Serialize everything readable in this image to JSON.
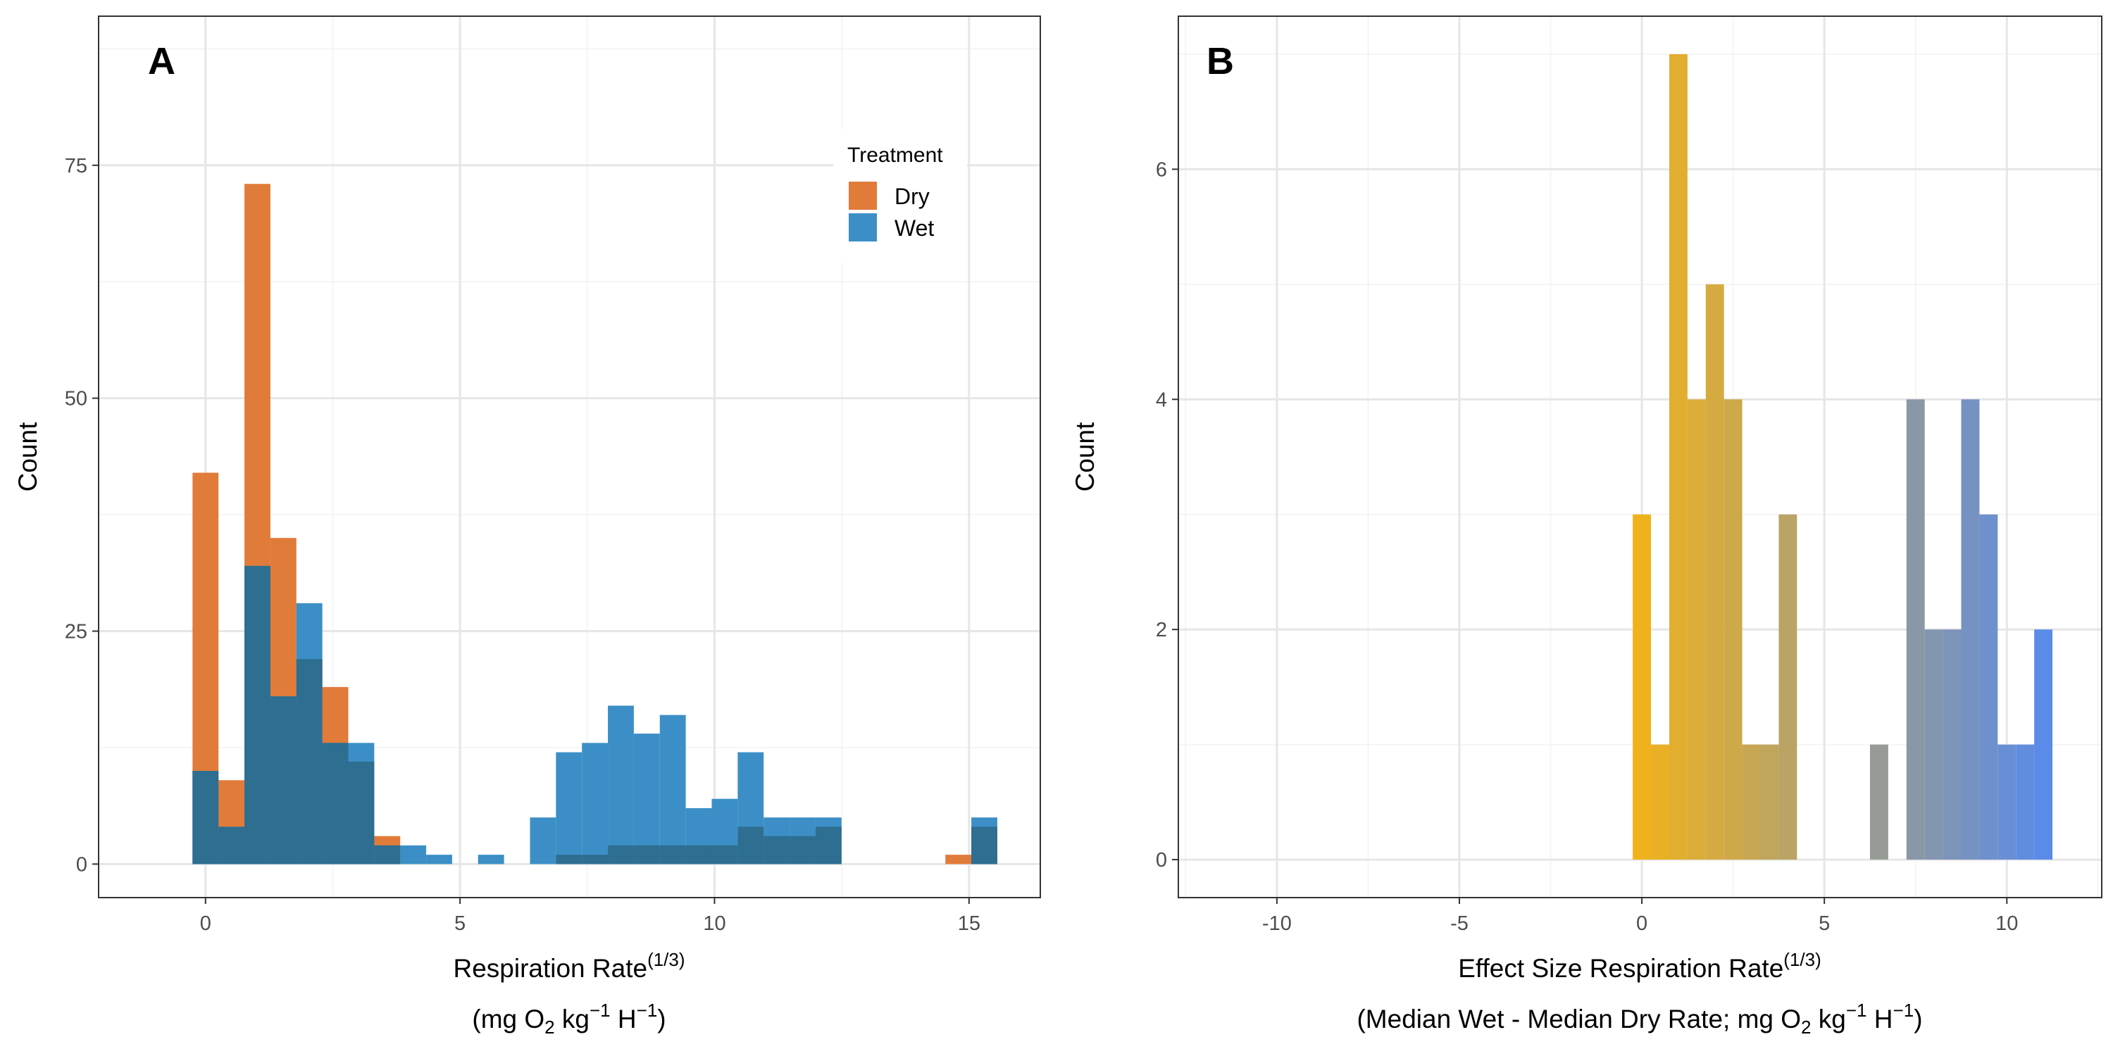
{
  "chart_data": [
    {
      "panel": "A",
      "type": "bar",
      "xlabel": "Respiration Rate",
      "xlabel_power": "(1/3)",
      "xlabel_units": "(mg O2 kg-1 H-1)",
      "ylabel": "Count",
      "xlim": [
        -2.1,
        16.4
      ],
      "ylim": [
        -3.6,
        91
      ],
      "x_ticks": [
        0,
        5,
        10,
        15
      ],
      "y_ticks": [
        0,
        25,
        50,
        75
      ],
      "grid": true,
      "bin_width": 0.51,
      "legend": {
        "title": "Treatment",
        "placement": "top-right",
        "items": [
          "Dry",
          "Wet"
        ]
      },
      "series": [
        {
          "name": "Dry",
          "color": "#e07b39",
          "x": [
            0.0,
            0.51,
            1.02,
            1.53,
            2.04,
            2.55,
            3.06,
            3.57,
            14.79,
            15.3
          ],
          "values": [
            42,
            9,
            73,
            35,
            22,
            19,
            11,
            3,
            1,
            4
          ]
        },
        {
          "name": "Wet",
          "color": "#3b8fc6",
          "x": [
            0.0,
            0.51,
            1.02,
            1.53,
            2.04,
            2.55,
            3.06,
            3.57,
            4.08,
            4.59,
            5.61,
            6.63,
            7.14,
            7.65,
            8.16,
            8.67,
            9.18,
            9.69,
            10.2,
            10.71,
            11.22,
            11.73,
            12.24,
            15.3
          ],
          "values": [
            10,
            4,
            32,
            18,
            28,
            13,
            13,
            2,
            2,
            1,
            1,
            5,
            12,
            13,
            17,
            14,
            16,
            6,
            7,
            12,
            5,
            5,
            5,
            5
          ]
        }
      ],
      "overlap": [
        {
          "x": 0.0,
          "value": 10
        },
        {
          "x": 0.51,
          "value": 4
        },
        {
          "x": 1.02,
          "value": 32
        },
        {
          "x": 1.53,
          "value": 18
        },
        {
          "x": 2.04,
          "value": 22
        },
        {
          "x": 2.55,
          "value": 13
        },
        {
          "x": 3.06,
          "value": 11
        },
        {
          "x": 3.57,
          "value": 2
        },
        {
          "x": 7.14,
          "value": 1
        },
        {
          "x": 7.65,
          "value": 1
        },
        {
          "x": 8.16,
          "value": 2
        },
        {
          "x": 8.67,
          "value": 2
        },
        {
          "x": 9.18,
          "value": 2
        },
        {
          "x": 9.69,
          "value": 2
        },
        {
          "x": 10.2,
          "value": 2
        },
        {
          "x": 10.71,
          "value": 4
        },
        {
          "x": 11.22,
          "value": 3
        },
        {
          "x": 11.73,
          "value": 3
        },
        {
          "x": 12.24,
          "value": 4
        },
        {
          "x": 15.3,
          "value": 4
        }
      ],
      "overlap_color": "#2e6e91"
    },
    {
      "panel": "B",
      "type": "bar",
      "xlabel": "Effect Size Respiration Rate",
      "xlabel_power": "(1/3)",
      "xlabel_units": "(Median Wet - Median Dry Rate; mg O2 kg-1 H-1)",
      "ylabel": "Count",
      "xlim": [
        -12.7,
        12.6
      ],
      "ylim": [
        -0.33,
        7.33
      ],
      "x_ticks": [
        -10,
        -5,
        0,
        5,
        10
      ],
      "y_ticks": [
        0,
        2,
        4,
        6
      ],
      "grid": true,
      "bin_width": 0.5,
      "gradient": {
        "from": "#f0b21c",
        "to": "#5a8be8"
      },
      "x": [
        0.0,
        0.5,
        1.0,
        1.5,
        2.0,
        2.5,
        3.0,
        3.5,
        4.0,
        6.5,
        7.5,
        8.0,
        8.5,
        9.0,
        9.5,
        10.0,
        10.5,
        11.0
      ],
      "values": [
        3,
        1,
        7,
        4,
        5,
        4,
        1,
        1,
        3,
        1,
        4,
        2,
        2,
        4,
        3,
        1,
        1,
        2
      ]
    }
  ]
}
